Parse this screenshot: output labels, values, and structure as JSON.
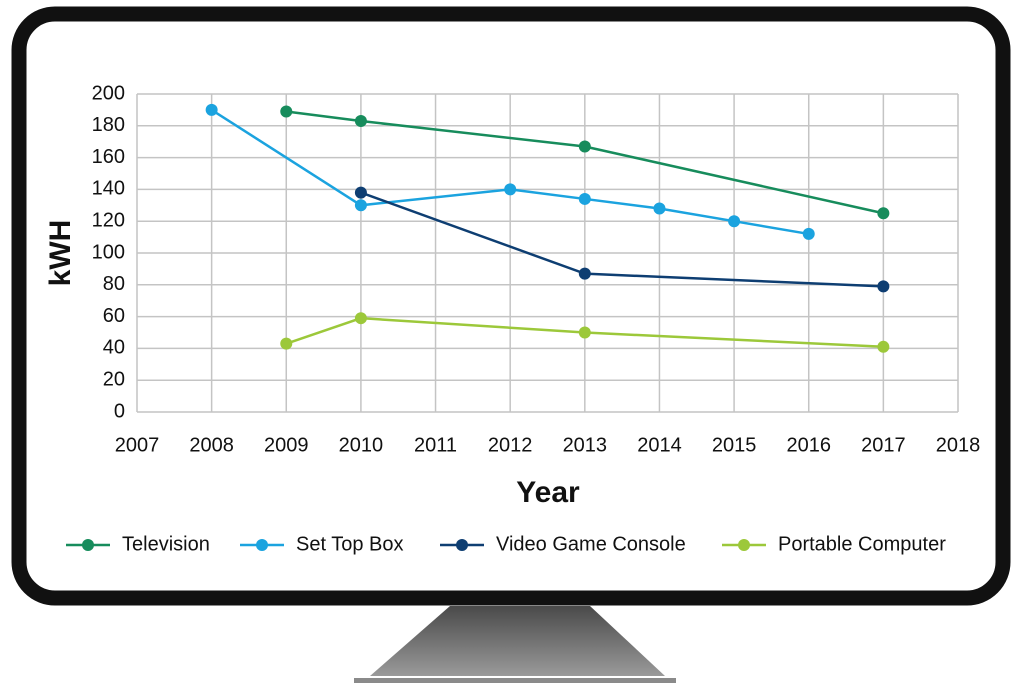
{
  "chart_data": {
    "type": "line",
    "x_label": "Year",
    "y_label": "kWH",
    "xlim": [
      2007,
      2018
    ],
    "xticks": [
      2007,
      2008,
      2009,
      2010,
      2011,
      2012,
      2013,
      2014,
      2015,
      2016,
      2017,
      2018
    ],
    "ylim": [
      0,
      200
    ],
    "yticks": [
      0,
      20,
      40,
      60,
      80,
      100,
      120,
      140,
      160,
      180,
      200
    ],
    "grid": true,
    "legend": "bottom",
    "series": [
      {
        "name": "Television",
        "color": "#178c5c",
        "x": [
          2009,
          2010,
          2013,
          2017
        ],
        "values": [
          189,
          183,
          167,
          125
        ]
      },
      {
        "name": "Set Top Box",
        "color": "#1ba3df",
        "x": [
          2008,
          2010,
          2012,
          2013,
          2014,
          2015,
          2016
        ],
        "values": [
          190,
          130,
          140,
          134,
          128,
          120,
          112
        ]
      },
      {
        "name": "Video Game Console",
        "color": "#0e3e72",
        "x": [
          2010,
          2013,
          2017
        ],
        "values": [
          138,
          87,
          79
        ]
      },
      {
        "name": "Portable Computer",
        "color": "#9cc83a",
        "x": [
          2009,
          2010,
          2013,
          2017
        ],
        "values": [
          43,
          59,
          50,
          41
        ]
      }
    ]
  }
}
